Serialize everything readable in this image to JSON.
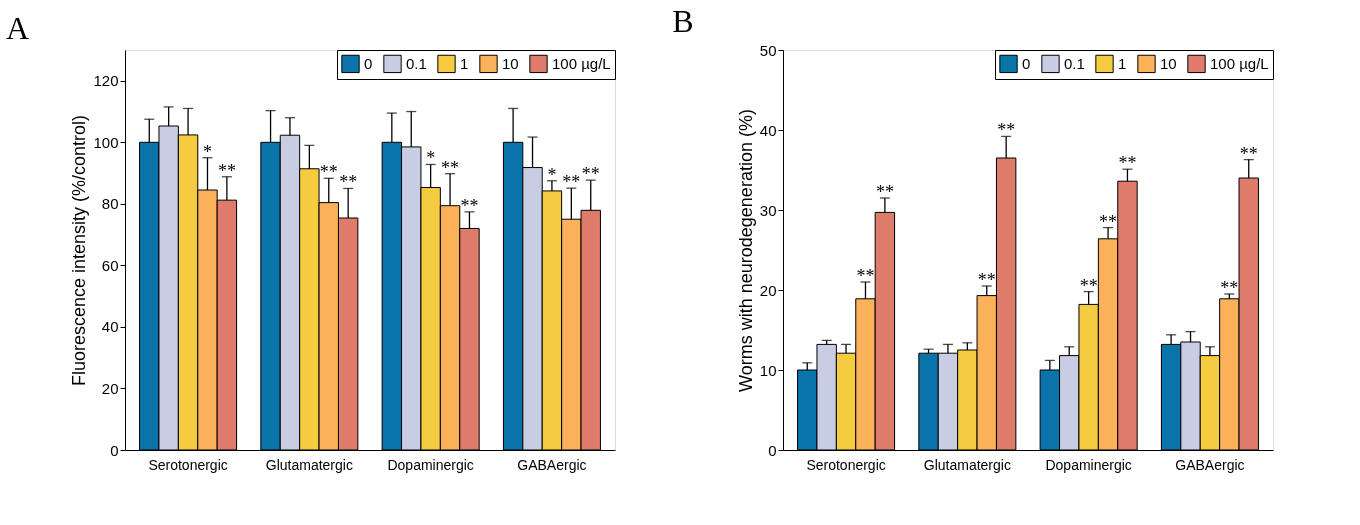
{
  "chart_data": [
    {
      "type": "bar",
      "title": "A",
      "ylabel": "Fluorescence intensity (%/control)",
      "categories": [
        "Serotonergic",
        "Glutamatergic",
        "Dopaminergic",
        "GABAergic"
      ],
      "ylim": [
        0,
        130
      ],
      "yticks": [
        0,
        20,
        40,
        60,
        80,
        100,
        120
      ],
      "grid": false,
      "legend": "top right",
      "series": [
        {
          "name": "0",
          "color": "#0a74aa",
          "values": [
            100,
            100,
            100,
            100
          ],
          "errors": [
            [
              100,
              107.5
            ],
            [
              100,
              110.3
            ],
            [
              100,
              109.5
            ],
            [
              100,
              111
            ]
          ]
        },
        {
          "name": "0.1",
          "color": "#c9cde3",
          "values": [
            105.3,
            102.3,
            98.5,
            91.8
          ],
          "errors": [
            [
              105.3,
              111.5
            ],
            [
              102.3,
              108
            ],
            [
              98.5,
              110
            ],
            [
              91.8,
              101.7
            ]
          ]
        },
        {
          "name": "1",
          "color": "#f5cc3f",
          "values": [
            102.4,
            91.4,
            85.3,
            84.2
          ],
          "errors": [
            [
              102.4,
              111
            ],
            [
              91.4,
              99
            ],
            [
              85.3,
              92.8
            ],
            [
              84.2,
              87.5
            ]
          ],
          "value_labels": [
            null,
            null,
            "*",
            "*"
          ]
        },
        {
          "name": "10",
          "color": "#fbb15a",
          "values": [
            84.5,
            80.4,
            79.4,
            75
          ],
          "errors": [
            [
              84.5,
              95
            ],
            [
              80.4,
              88.3
            ],
            [
              79.4,
              89.8
            ],
            [
              75,
              85.1
            ]
          ],
          "value_labels": [
            "*",
            "**",
            "**",
            "**"
          ]
        },
        {
          "name": "100 µg/L",
          "color": "#de7b6a",
          "values": [
            81.2,
            75.4,
            72,
            77.9
          ],
          "errors": [
            [
              81.2,
              88.8
            ],
            [
              75.4,
              85
            ],
            [
              72,
              77.4
            ],
            [
              77.9,
              87.7
            ]
          ],
          "value_labels": [
            "**",
            "**",
            "**",
            "**"
          ]
        }
      ]
    },
    {
      "type": "bar",
      "title": "B",
      "ylabel": "Worms with neurodegeneration (%)",
      "categories": [
        "Serotonergic",
        "Glutamatergic",
        "Dopaminergic",
        "GABAergic"
      ],
      "ylim": [
        0,
        50
      ],
      "yticks": [
        0,
        10,
        20,
        30,
        40,
        50
      ],
      "grid": false,
      "legend": "top right",
      "series": [
        {
          "name": "0",
          "color": "#0a74aa",
          "values": [
            10,
            12.1,
            10,
            13.2
          ],
          "errors": [
            [
              10,
              10.9
            ],
            [
              12.1,
              12.6
            ],
            [
              10,
              11.2
            ],
            [
              13.2,
              14.4
            ]
          ]
        },
        {
          "name": "0.1",
          "color": "#c9cde3",
          "values": [
            13.2,
            12.1,
            11.8,
            13.5
          ],
          "errors": [
            [
              13.2,
              13.7
            ],
            [
              12.1,
              13.2
            ],
            [
              11.8,
              12.9
            ],
            [
              13.5,
              14.8
            ]
          ]
        },
        {
          "name": "1",
          "color": "#f5cc3f",
          "values": [
            12.1,
            12.5,
            18.2,
            11.8
          ],
          "errors": [
            [
              12.1,
              13.2
            ],
            [
              12.5,
              13.4
            ],
            [
              18.2,
              19.8
            ],
            [
              11.8,
              12.9
            ]
          ],
          "value_labels": [
            null,
            null,
            "**",
            null
          ]
        },
        {
          "name": "10",
          "color": "#fbb15a",
          "values": [
            18.9,
            19.3,
            26.4,
            18.9
          ],
          "errors": [
            [
              18.9,
              21
            ],
            [
              19.3,
              20.5
            ],
            [
              26.4,
              27.8
            ],
            [
              18.9,
              19.5
            ]
          ],
          "value_labels": [
            "**",
            "**",
            "**",
            "**"
          ]
        },
        {
          "name": "100 µg/L",
          "color": "#de7b6a",
          "values": [
            29.7,
            36.5,
            33.6,
            34
          ],
          "errors": [
            [
              29.7,
              31.5
            ],
            [
              36.5,
              39.2
            ],
            [
              33.6,
              35.1
            ],
            [
              34,
              36.3
            ]
          ],
          "value_labels": [
            "**",
            "**",
            "**",
            "**"
          ]
        }
      ]
    }
  ]
}
